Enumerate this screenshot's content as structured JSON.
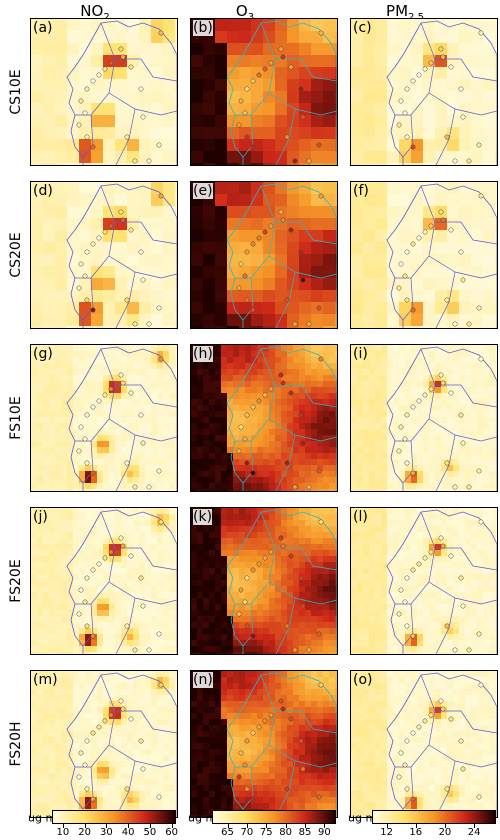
{
  "columns": [
    {
      "id": "no2",
      "header": "NO",
      "sub": "2",
      "subtype": "sub"
    },
    {
      "id": "o3",
      "header": "O",
      "sub": "3",
      "subtype": "sub"
    },
    {
      "id": "pm",
      "header": "PM",
      "sub": "2.5",
      "subtype": "sub"
    }
  ],
  "rows": [
    "CS10E",
    "CS20E",
    "FS10E",
    "FS20E",
    "FS20H"
  ],
  "panel_labels": [
    "(a)",
    "(b)",
    "(c)",
    "(d)",
    "(e)",
    "(f)",
    "(g)",
    "(h)",
    "(i)",
    "(j)",
    "(k)",
    "(l)",
    "(m)",
    "(n)",
    "(o)"
  ],
  "colorbars": [
    {
      "unit": "ug m",
      "exp": "-3",
      "ticks": [
        "10",
        "20",
        "30",
        "40",
        "50",
        "60"
      ],
      "min": 5,
      "max": 62
    },
    {
      "unit": "ug m",
      "exp": "-3",
      "ticks": [
        "65",
        "70",
        "75",
        "80",
        "85",
        "90"
      ],
      "min": 61,
      "max": 93
    },
    {
      "unit": "ug m",
      "exp": "-3",
      "ticks": [
        "12",
        "16",
        "20",
        "24"
      ],
      "min": 10,
      "max": 27
    }
  ],
  "colors": {
    "light": "#fffbe0",
    "yellow": "#ffe680",
    "orange": "#f5a623",
    "red": "#d7301f",
    "dark": "#3b0000",
    "black": "#000000",
    "border": "#5b5bd6",
    "coast": "#2bb5c9"
  },
  "chart_data": {
    "type": "heatmap",
    "title": "",
    "panels": "5 rows (CS10E, CS20E, FS10E, FS20E, FS20H) x 3 columns (NO2, O3, PM2.5) of concentration maps with station markers",
    "colorbar_ranges": {
      "NO2": [
        5,
        62
      ],
      "O3": [
        61,
        93
      ],
      "PM2.5": [
        10,
        27
      ]
    }
  }
}
